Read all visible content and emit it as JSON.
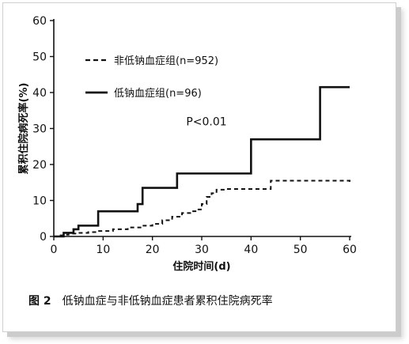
{
  "chart_data": {
    "type": "line",
    "step": true,
    "ylabel": "累积住院病死率(%)",
    "xlabel": "住院时间(d)",
    "xlim": [
      0,
      60
    ],
    "ylim": [
      0,
      60
    ],
    "xticks": [
      0,
      10,
      20,
      30,
      40,
      50,
      60
    ],
    "yticks": [
      0,
      10,
      20,
      30,
      40,
      50,
      60
    ],
    "grid": false,
    "legend_position": "top-left",
    "annotation": "P<0.01",
    "annotation_position": {
      "x": 40,
      "y": 32
    },
    "series": [
      {
        "name": "非低钠血症组(n=952)",
        "style": "dashed",
        "color": "#111111",
        "x": [
          0,
          1,
          2,
          3,
          5,
          7,
          9,
          12,
          15,
          18,
          20,
          22,
          24,
          26,
          28,
          29,
          30,
          31,
          32,
          33,
          35,
          44,
          60
        ],
        "y": [
          0,
          0.3,
          0.5,
          0.8,
          1.0,
          1.2,
          1.5,
          2.0,
          2.5,
          3.0,
          3.5,
          4.5,
          5.5,
          6.5,
          7.0,
          7.5,
          9.0,
          11.0,
          12.0,
          13.0,
          13.2,
          15.5,
          15.2
        ]
      },
      {
        "name": "低钠血症组(n=96)",
        "style": "solid",
        "color": "#111111",
        "x": [
          0,
          2,
          3,
          4,
          5,
          9,
          17,
          18,
          25,
          40,
          54,
          60
        ],
        "y": [
          0,
          1,
          1,
          2,
          3,
          7,
          9,
          13.5,
          17.5,
          27,
          41.5,
          41.5
        ]
      }
    ]
  },
  "caption": {
    "figure_number": "图 2",
    "text": "低钠血症与非低钠血症患者累积住院病死率"
  }
}
